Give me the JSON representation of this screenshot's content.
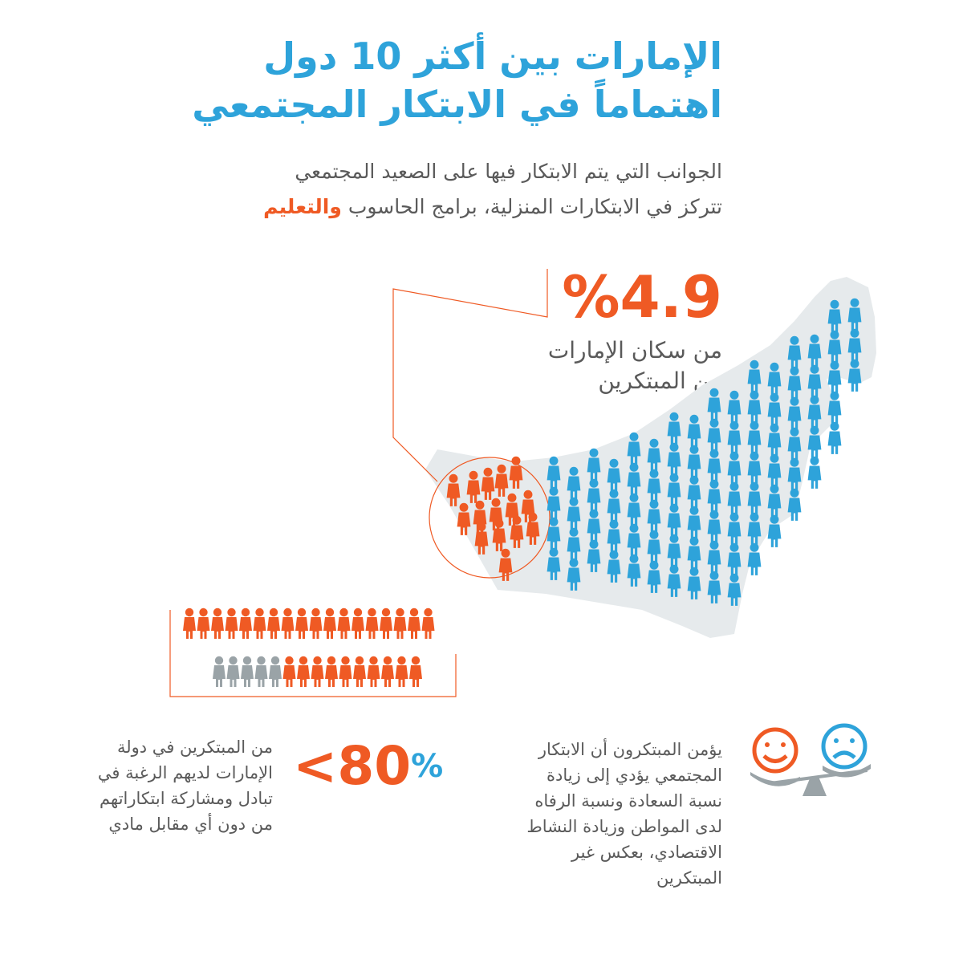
{
  "title": {
    "line1": "الإمارات بين أكثر 10 دول",
    "line2": "اهتماماً في الابتكار المجتمعي"
  },
  "intro": {
    "line1": "الجوانب التي يتم الابتكار فيها على الصعيد المجتمعي",
    "line2_text": "تتركز في الابتكارات المنزلية، برامج الحاسوب",
    "line2_highlight": "والتعليم"
  },
  "stat_innovators": {
    "value": "%4.9",
    "label_line1": "من سكان الإمارات",
    "label_line2": "من المبتكرين"
  },
  "stat_sharing": {
    "value": "80",
    "symbol": "<",
    "percent": "%",
    "label_line1": "من المبتكرين في دولة",
    "label_line2": "الإمارات لديهم الرغبة في",
    "label_line3": "تبادل ومشاركة ابتكاراتهم",
    "label_line4": "من دون أي مقابل مادي"
  },
  "belief": {
    "line1": "يؤمن المبتكرون أن الابتكار",
    "line2": "المجتمعي يؤدي إلى زيادة",
    "line3": "نسبة السعادة ونسبة الرفاه",
    "line4": "لدى المواطن وزيادة النشاط",
    "line5": "الاقتصادي، بعكس غير",
    "line6": "المبتكرين"
  },
  "people_rows": {
    "row1": {
      "orange": 18,
      "gray": 0
    },
    "row2": {
      "orange": 10,
      "gray": 5
    }
  },
  "icons": [
    "happy-face-icon",
    "sad-face-icon",
    "balance-scale-icon",
    "person-icon"
  ],
  "colors": {
    "blue": "#2ea3da",
    "orange": "#ef5a24",
    "gray_text": "#5a5a5a",
    "gray_figure": "#9aa3a7",
    "map": "#e6eaec"
  }
}
